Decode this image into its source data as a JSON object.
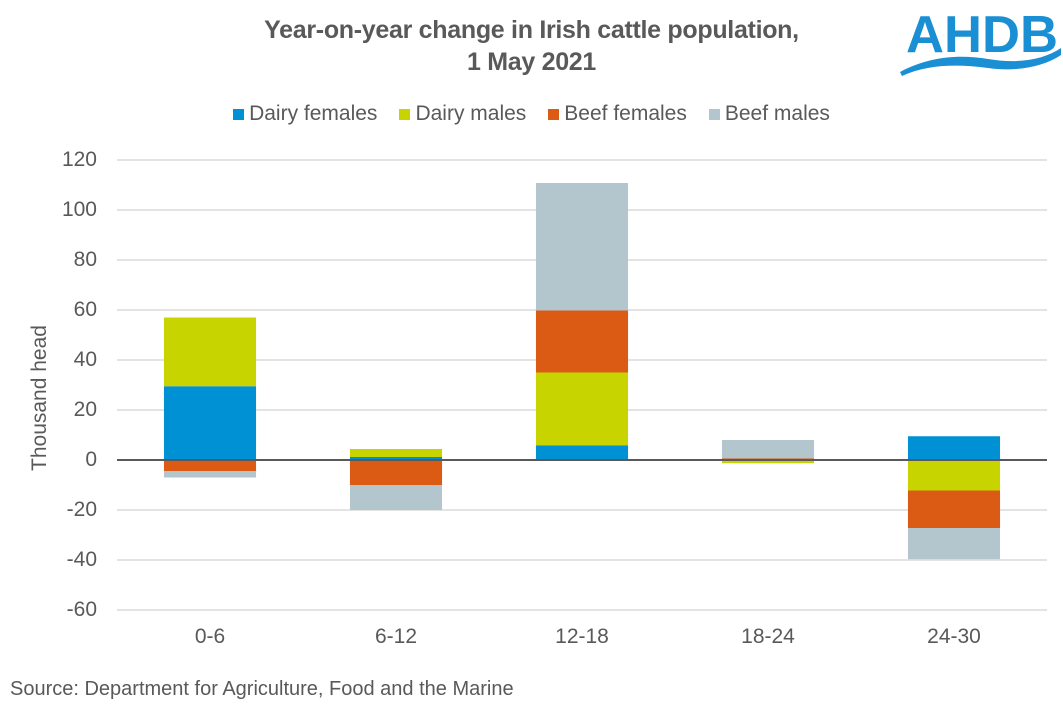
{
  "chart_data": {
    "type": "bar",
    "stacked": true,
    "title": "Year-on-year change in Irish cattle population, 1 May 2021",
    "title_lines": [
      "Year-on-year change in Irish cattle population,",
      "1 May 2021"
    ],
    "xlabel": "",
    "ylabel": "Thousand head",
    "ylim": [
      -60,
      120
    ],
    "yticks": [
      120,
      100,
      80,
      60,
      40,
      20,
      0,
      -20,
      -40,
      -60
    ],
    "grid": true,
    "legend_position": "top",
    "categories": [
      "0-6",
      "6-12",
      "12-18",
      "18-24",
      "24-30"
    ],
    "series": [
      {
        "name": "Dairy females",
        "color": "#0090D4",
        "values": [
          29.5,
          1.2,
          5.8,
          0,
          9.5
        ]
      },
      {
        "name": "Dairy males",
        "color": "#C8D400",
        "values": [
          27.5,
          3.2,
          29.2,
          -1.3,
          -12.2
        ]
      },
      {
        "name": "Beef females",
        "color": "#DB5A14",
        "values": [
          -4.5,
          -10,
          24.8,
          0.6,
          -15
        ]
      },
      {
        "name": "Beef males",
        "color": "#B3C5CD",
        "values": [
          -2.5,
          -10,
          51,
          7.4,
          -12.5
        ]
      }
    ],
    "source": "Source: Department for Agriculture, Food and the Marine"
  },
  "logo": {
    "text": "AHDB",
    "color": "#1A8FD4"
  }
}
